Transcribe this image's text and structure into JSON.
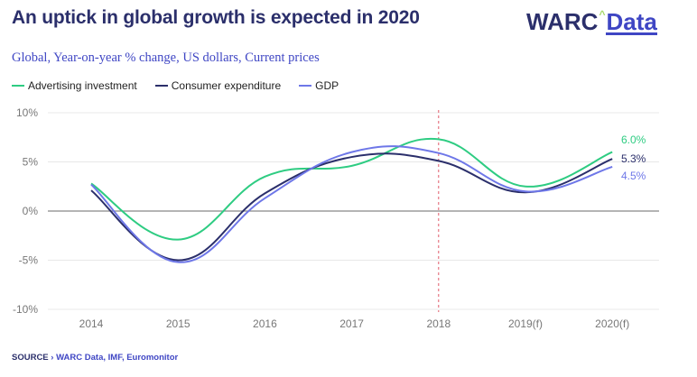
{
  "title": "An uptick in global growth is expected in 2020",
  "logo": {
    "brand": "WARC",
    "caret": "^",
    "product": "Data"
  },
  "subtitle": "Global, Year-on-year % change, US dollars, Current prices",
  "source": {
    "label": "SOURCE",
    "separator": "›",
    "text": "WARC  Data, IMF, Euromonitor"
  },
  "colors": {
    "advertising": "#2ecc82",
    "consumer": "#2b2f6b",
    "gdp": "#6e77e8",
    "divider": "#e05a6a"
  },
  "chart_data": {
    "type": "line",
    "categories": [
      "2014",
      "2015",
      "2016",
      "2017",
      "2018",
      "2019(f)",
      "2020(f)"
    ],
    "series": [
      {
        "name": "Advertising investment",
        "values": [
          2.8,
          -2.9,
          3.5,
          4.6,
          7.3,
          2.5,
          6.0
        ],
        "end_label": "6.0%"
      },
      {
        "name": "Consumer expenditure",
        "values": [
          2.1,
          -5.0,
          1.8,
          5.5,
          5.1,
          1.9,
          5.3
        ],
        "end_label": "5.3%"
      },
      {
        "name": "GDP",
        "values": [
          2.7,
          -5.2,
          1.3,
          6.0,
          5.9,
          2.0,
          4.5
        ],
        "end_label": "4.5%"
      }
    ],
    "yticks": [
      "10%",
      "5%",
      "0%",
      "-5%",
      "-10%"
    ],
    "ylim": [
      -10,
      10
    ],
    "grid": true,
    "legend": "top-left",
    "forecast_divider_at": "2018"
  }
}
